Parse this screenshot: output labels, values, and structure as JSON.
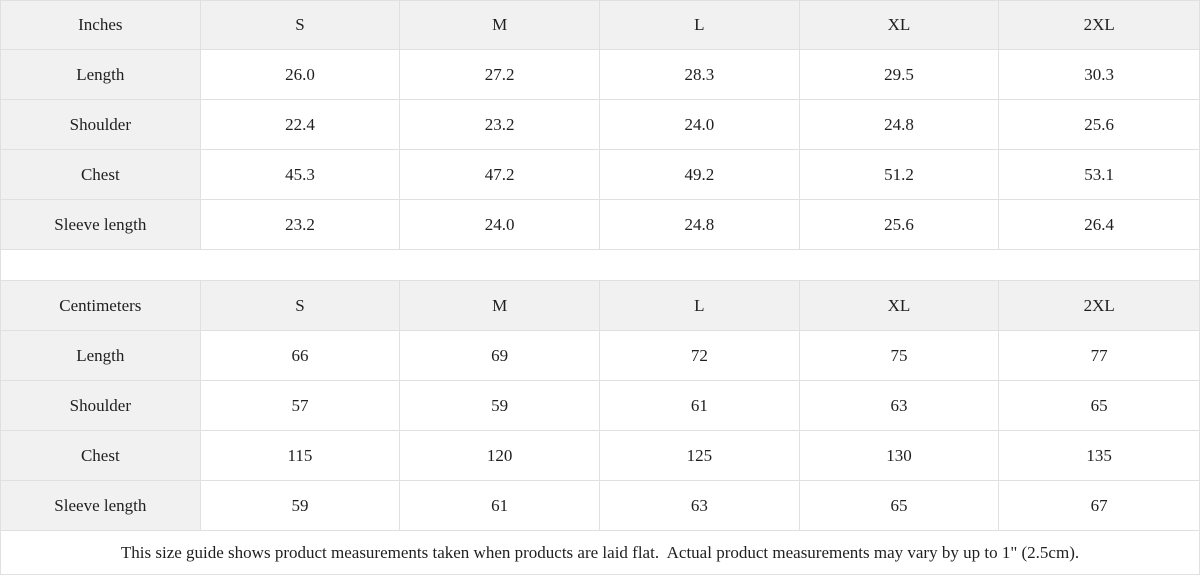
{
  "chart_data": [
    {
      "type": "table",
      "title": "Inches",
      "header": [
        "Inches",
        "S",
        "M",
        "L",
        "XL",
        "2XL"
      ],
      "rows": [
        [
          "Length",
          "26.0",
          "27.2",
          "28.3",
          "29.5",
          "30.3"
        ],
        [
          "Shoulder",
          "22.4",
          "23.2",
          "24.0",
          "24.8",
          "25.6"
        ],
        [
          "Chest",
          "45.3",
          "47.2",
          "49.2",
          "51.2",
          "53.1"
        ],
        [
          "Sleeve length",
          "23.2",
          "24.0",
          "24.8",
          "25.6",
          "26.4"
        ]
      ]
    },
    {
      "type": "table",
      "title": "Centimeters",
      "header": [
        "Centimeters",
        "S",
        "M",
        "L",
        "XL",
        "2XL"
      ],
      "rows": [
        [
          "Length",
          "66",
          "69",
          "72",
          "75",
          "77"
        ],
        [
          "Shoulder",
          "57",
          "59",
          "61",
          "63",
          "65"
        ],
        [
          "Chest",
          "115",
          "120",
          "125",
          "130",
          "135"
        ],
        [
          "Sleeve length",
          "59",
          "61",
          "63",
          "65",
          "67"
        ]
      ]
    }
  ],
  "footer_note": "This size guide shows product measurements taken when products are laid flat.  Actual product measurements may vary by up to 1\" (2.5cm).",
  "colors": {
    "header_bg": "#f1f1f1",
    "row_label_bg": "#f1f1f1",
    "border": "#e0e0e0",
    "text": "#1f1f1f",
    "background": "#ffffff"
  }
}
